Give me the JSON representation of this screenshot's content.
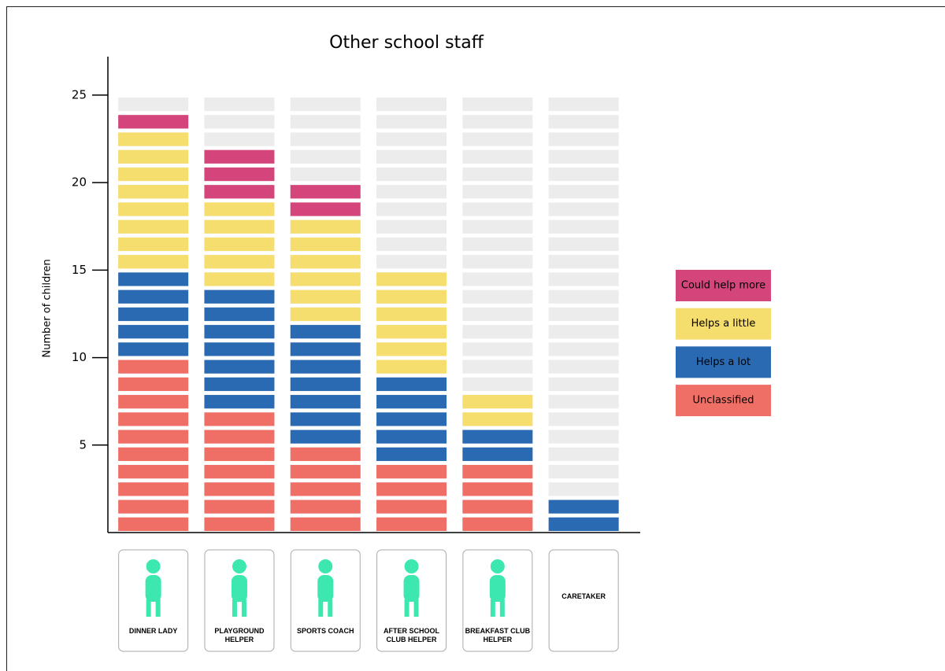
{
  "chart_data": {
    "type": "stacked-block",
    "title": "Other school staff",
    "y_label": "Number of children",
    "categories": [
      "DINNER LADY",
      "PLAYGROUND HELPER",
      "SPORTS COACH",
      "AFTER SCHOOL CLUB HELPER",
      "BREAKFAST CLUB HELPER",
      "CARETAKER"
    ],
    "series": [
      {
        "name": "Unclassified",
        "color": "#ef6f66",
        "values": [
          10,
          7,
          5,
          4,
          4,
          0
        ]
      },
      {
        "name": "Helps a lot",
        "color": "#2a6ab3",
        "values": [
          5,
          7,
          7,
          5,
          2,
          2
        ]
      },
      {
        "name": "Helps a little",
        "color": "#f5dd6e",
        "values": [
          8,
          5,
          6,
          6,
          2,
          0
        ]
      },
      {
        "name": "Could help more",
        "color": "#d3457b",
        "values": [
          1,
          3,
          2,
          0,
          0,
          0
        ]
      }
    ],
    "ylim": [
      0,
      27.2
    ],
    "yticks": [
      5,
      10,
      15,
      20,
      25
    ]
  }
}
